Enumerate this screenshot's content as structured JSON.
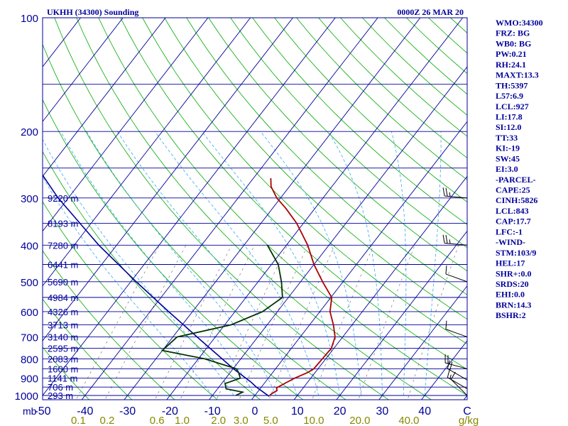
{
  "title": "UKHH (34300) Sounding",
  "datetime": "0000Z 26 MAR 20",
  "pressure_unit": "mb",
  "mixing_unit": "g/kg",
  "colors": {
    "frame": "#000099",
    "isobar": "#000099",
    "isotherm": "#000099",
    "dry_adiabat": "#00aa00",
    "moist_adiabat": "#33aaee",
    "mixing_ratio": "#777777",
    "temperature": "#aa0000",
    "dewpoint": "#003300",
    "parcel": "#000099",
    "wind_barb": "#000000",
    "label": "#000099",
    "mixing_label": "#888800"
  },
  "indices": [
    "WMO:34300",
    "FRZ: BG",
    "WB0: BG",
    "PW:0.21",
    "RH:24.1",
    "MAXT:13.3",
    "TH:5397",
    "L57:6.9",
    "LCL:927",
    "LI:17.8",
    "SI:12.0",
    "TT:33",
    "KI:-19",
    "SW:45",
    "EI:3.0",
    "-PARCEL-",
    "CAPE:25",
    "CINH:5826",
    "LCL:843",
    "CAP:17.7",
    "LFC:-1",
    "-WIND-",
    "STM:103/9",
    "HEL:17",
    "SHR+:0.0",
    "SRDS:20",
    "EHI:0.0",
    "BRN:14.3",
    "BSHR:2"
  ],
  "chart_data": {
    "type": "line",
    "diagram": "skew-T log-P",
    "pressure_axis": {
      "scale": "log",
      "range": [
        1000,
        100
      ],
      "tick_labels": [
        "100",
        "200",
        "300",
        "400",
        "500",
        "600",
        "700",
        "800",
        "900",
        "1000"
      ],
      "tick_values": [
        100,
        200,
        300,
        400,
        500,
        600,
        700,
        800,
        900,
        1000
      ]
    },
    "temperature_axis": {
      "range": [
        -50,
        50
      ],
      "tick_values": [
        -50,
        -40,
        -30,
        -20,
        -10,
        0,
        10,
        20,
        30,
        40,
        50
      ],
      "tick_labels": [
        "-50",
        "-40",
        "-30",
        "-20",
        "-10",
        "0",
        "10",
        "20",
        "30",
        "40",
        "C"
      ]
    },
    "isobars": [
      1000,
      950,
      900,
      850,
      800,
      750,
      700,
      650,
      600,
      550,
      500,
      450,
      400,
      350,
      300,
      250,
      200,
      150,
      100
    ],
    "heights": [
      {
        "p": 300,
        "label": "9220 m"
      },
      {
        "p": 350,
        "label": "8193 m"
      },
      {
        "p": 400,
        "label": "7280 m"
      },
      {
        "p": 450,
        "label": "6441 m"
      },
      {
        "p": 500,
        "label": "5690 m"
      },
      {
        "p": 550,
        "label": "4984 m"
      },
      {
        "p": 600,
        "label": "4326 m"
      },
      {
        "p": 650,
        "label": "3713 m"
      },
      {
        "p": 700,
        "label": "3140 m"
      },
      {
        "p": 750,
        "label": "2595 m"
      },
      {
        "p": 800,
        "label": "2083 m"
      },
      {
        "p": 850,
        "label": "1600 m"
      },
      {
        "p": 900,
        "label": "1141 m"
      },
      {
        "p": 950,
        "label": "706 m"
      },
      {
        "p": 1000,
        "label": "293 m"
      }
    ],
    "mixing_ratio_labels": [
      {
        "w": 0.1,
        "label": "0.1"
      },
      {
        "w": 0.2,
        "label": "0.2"
      },
      {
        "w": 0.6,
        "label": "0.6"
      },
      {
        "w": 1.0,
        "label": "1.0"
      },
      {
        "w": 2.0,
        "label": "2.0"
      },
      {
        "w": 3.0,
        "label": "3.0"
      },
      {
        "w": 5.0,
        "label": "5.0"
      },
      {
        "w": 10.0,
        "label": "10.0"
      },
      {
        "w": 20.0,
        "label": "20.0"
      },
      {
        "w": 40.0,
        "label": "40.0"
      }
    ],
    "temperature": [
      [
        1000,
        3.5
      ],
      [
        990,
        3.6
      ],
      [
        970,
        4.3
      ],
      [
        955,
        3.7
      ],
      [
        925,
        5.0
      ],
      [
        900,
        6.2
      ],
      [
        870,
        8.2
      ],
      [
        850,
        9.0
      ],
      [
        800,
        9.2
      ],
      [
        750,
        9.4
      ],
      [
        700,
        8.2
      ],
      [
        650,
        5.6
      ],
      [
        600,
        2.4
      ],
      [
        550,
        0.2
      ],
      [
        500,
        -4.8
      ],
      [
        450,
        -10.0
      ],
      [
        400,
        -15.0
      ],
      [
        350,
        -21.6
      ],
      [
        320,
        -26.8
      ],
      [
        300,
        -30.9
      ],
      [
        280,
        -34.3
      ],
      [
        266,
        -35.9
      ]
    ],
    "dewpoint": [
      [
        1000,
        -4.5
      ],
      [
        980,
        -3.5
      ],
      [
        960,
        -8.0
      ],
      [
        930,
        -9.2
      ],
      [
        900,
        -6.6
      ],
      [
        870,
        -8.0
      ],
      [
        850,
        -9.2
      ],
      [
        800,
        -18.5
      ],
      [
        760,
        -30.0
      ],
      [
        700,
        -29.0
      ],
      [
        650,
        -18.5
      ],
      [
        600,
        -13.5
      ],
      [
        550,
        -11.4
      ],
      [
        500,
        -14.5
      ],
      [
        450,
        -18.4
      ],
      [
        400,
        -24.5
      ]
    ],
    "parcel": [
      [
        1005,
        3.5
      ],
      [
        950,
        -1.2
      ],
      [
        920,
        -3.5
      ],
      [
        850,
        -9.9
      ],
      [
        800,
        -14.4
      ],
      [
        700,
        -24.3
      ],
      [
        600,
        -35.6
      ],
      [
        500,
        -48.7
      ],
      [
        400,
        -64.2
      ],
      [
        300,
        -82.4
      ],
      [
        200,
        -105.2
      ],
      [
        150,
        -120.5
      ],
      [
        125,
        -128.0
      ]
    ],
    "wind_barbs": [
      {
        "p": 1000,
        "dir": 315,
        "speed": 10
      },
      {
        "p": 960,
        "dir": 300,
        "speed": 15
      },
      {
        "p": 910,
        "dir": 300,
        "speed": 20
      },
      {
        "p": 850,
        "dir": 285,
        "speed": 20
      },
      {
        "p": 700,
        "dir": 290,
        "speed": 10
      },
      {
        "p": 500,
        "dir": 290,
        "speed": 10
      },
      {
        "p": 400,
        "dir": 275,
        "speed": 25
      },
      {
        "p": 300,
        "dir": 275,
        "speed": 25
      }
    ]
  }
}
